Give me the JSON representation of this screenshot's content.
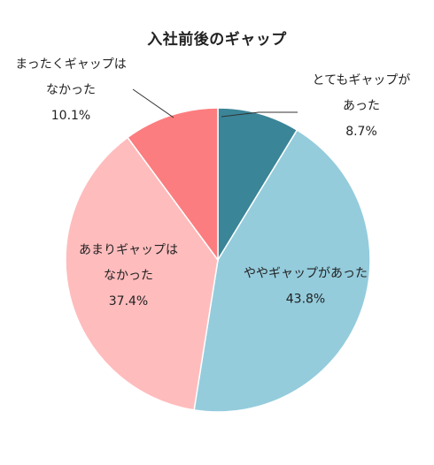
{
  "chart_data": {
    "type": "pie",
    "title": "入社前後のギャップ",
    "categories": [
      "とてもギャップがあった",
      "ややギャップがあった",
      "あまりギャップはなかった",
      "まったくギャップはなかった"
    ],
    "values": [
      8.7,
      43.8,
      37.4,
      10.1
    ],
    "colors": [
      "#3a8597",
      "#94ccdc",
      "#ffbcbd",
      "#fc7d7f"
    ],
    "slices": [
      {
        "lines": [
          "とてもギャップが",
          "あった"
        ],
        "percent_label": "8.7%"
      },
      {
        "lines": [
          "ややギャップがあった"
        ],
        "percent_label": "43.8%"
      },
      {
        "lines": [
          "あまりギャップは",
          "なかった"
        ],
        "percent_label": "37.4%"
      },
      {
        "lines": [
          "まったくギャップは",
          "なかった"
        ],
        "percent_label": "10.1%"
      }
    ]
  }
}
